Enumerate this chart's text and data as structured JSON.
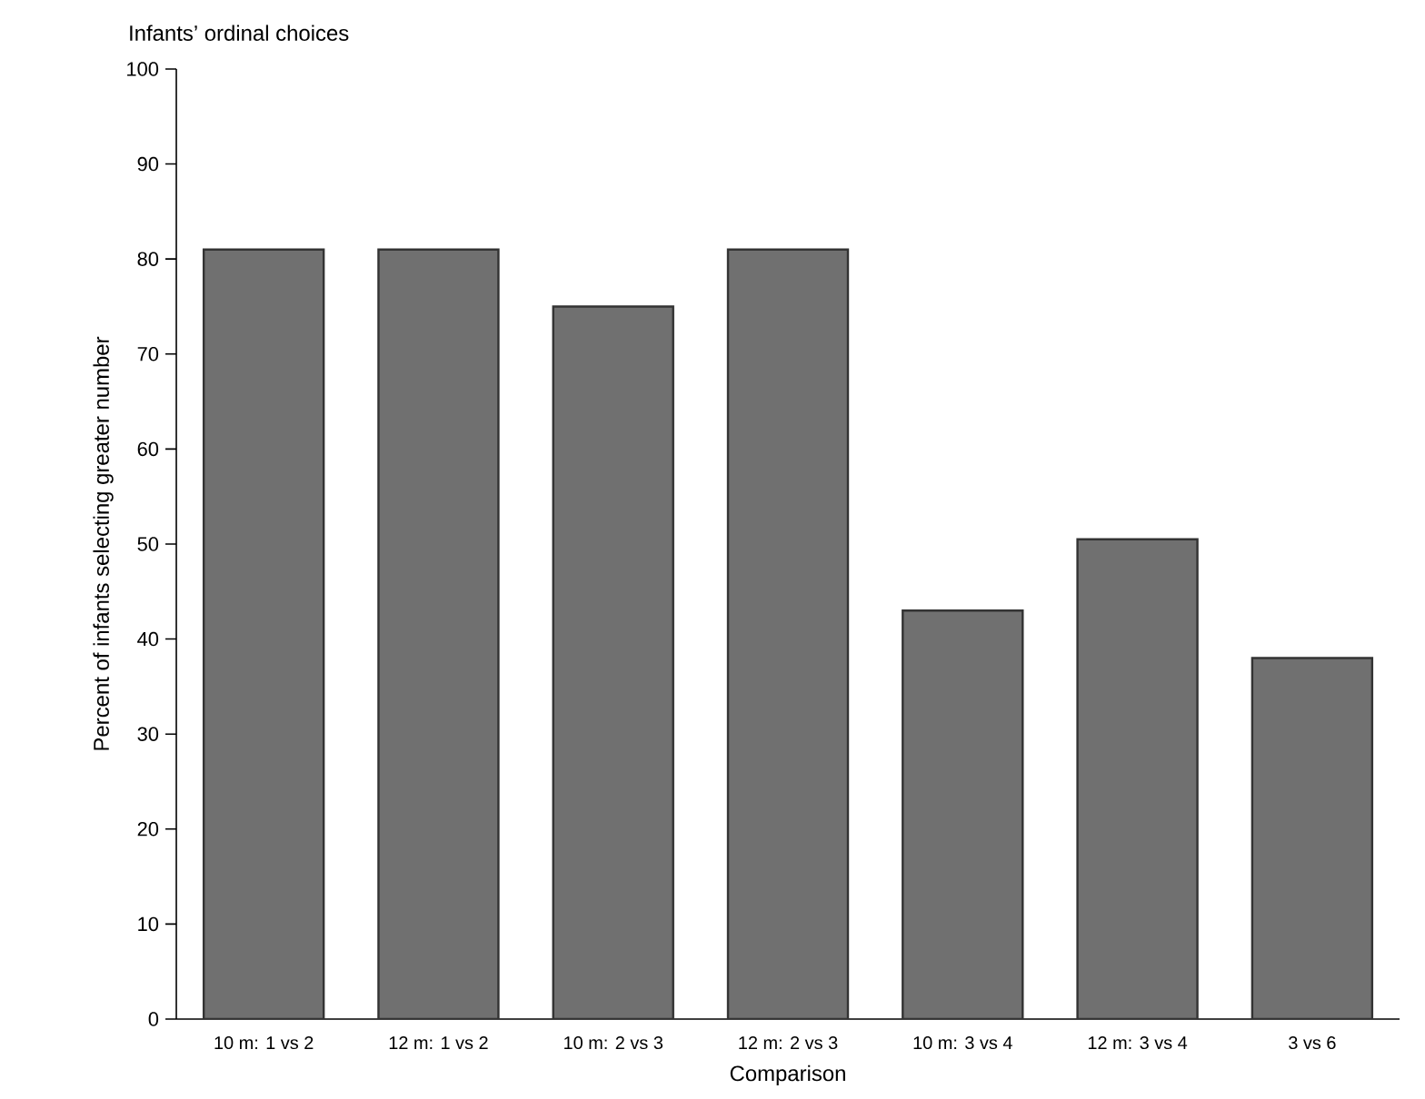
{
  "chart_data": {
    "type": "bar",
    "title": "Infants’ ordinal choices",
    "xlabel": "Comparison",
    "ylabel": "Percent of infants selecting greater number",
    "categories": [
      "10 m: 1 vs 2",
      "12 m: 1 vs 2",
      "10 m: 2 vs 3",
      "12 m: 2 vs 3",
      "10 m: 3 vs 4",
      "12 m: 3 vs 4",
      "3 vs 6"
    ],
    "values": [
      81,
      81,
      75,
      81,
      43,
      50.5,
      38
    ],
    "color": "#707070",
    "ylim": [
      0,
      100
    ],
    "yticks": [
      0,
      10,
      20,
      30,
      40,
      50,
      60,
      70,
      80,
      90,
      100
    ],
    "grid": false
  }
}
